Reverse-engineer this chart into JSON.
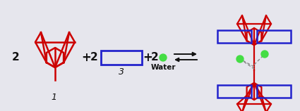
{
  "background_color": "#e6e6ed",
  "red": "#cc0000",
  "blue": "#2222cc",
  "green": "#44dd44",
  "black": "#111111",
  "gray": "#888888",
  "label_1": "1",
  "label_2": "2",
  "label_3": "3",
  "label_water": "Water",
  "plus": "+",
  "figsize": [
    4.25,
    1.58
  ],
  "dpi": 100
}
